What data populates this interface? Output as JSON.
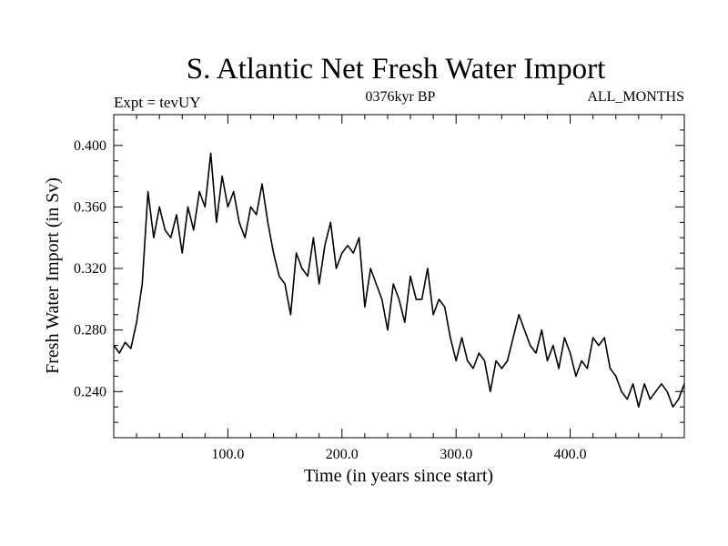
{
  "header": {
    "title": "S. Atlantic Net Fresh Water Import",
    "expt": "Expt = tevUY",
    "subtitle": "0376kyr BP",
    "months": "ALL_MONTHS"
  },
  "chart_data": {
    "type": "line",
    "title": "S. Atlantic Net Fresh Water Import",
    "xlabel": "Time (in years since start)",
    "ylabel": "Fresh Water Import (in Sv)",
    "xlim": [
      0,
      500
    ],
    "ylim": [
      0.21,
      0.42
    ],
    "x_ticks": [
      100,
      200,
      300,
      400
    ],
    "x_tick_labels": [
      "100.0",
      "200.0",
      "300.0",
      "400.0"
    ],
    "y_ticks": [
      0.24,
      0.28,
      0.32,
      0.36,
      0.4
    ],
    "y_tick_labels": [
      "0.240",
      "0.280",
      "0.320",
      "0.360",
      "0.400"
    ],
    "grid": false,
    "series": [
      {
        "color": "#000000",
        "x": [
          0,
          5,
          10,
          15,
          20,
          25,
          30,
          35,
          40,
          45,
          50,
          55,
          60,
          65,
          70,
          75,
          80,
          85,
          90,
          95,
          100,
          105,
          110,
          115,
          120,
          125,
          130,
          135,
          140,
          145,
          150,
          155,
          160,
          165,
          170,
          175,
          180,
          185,
          190,
          195,
          200,
          205,
          210,
          215,
          220,
          225,
          230,
          235,
          240,
          245,
          250,
          255,
          260,
          265,
          270,
          275,
          280,
          285,
          290,
          295,
          300,
          305,
          310,
          315,
          320,
          325,
          330,
          335,
          340,
          345,
          350,
          355,
          360,
          365,
          370,
          375,
          380,
          385,
          390,
          395,
          400,
          405,
          410,
          415,
          420,
          425,
          430,
          435,
          440,
          445,
          450,
          455,
          460,
          465,
          470,
          475,
          480,
          485,
          490,
          495,
          500
        ],
        "y": [
          0.27,
          0.265,
          0.272,
          0.268,
          0.285,
          0.31,
          0.37,
          0.34,
          0.36,
          0.345,
          0.34,
          0.355,
          0.33,
          0.36,
          0.345,
          0.37,
          0.36,
          0.395,
          0.35,
          0.38,
          0.36,
          0.37,
          0.35,
          0.34,
          0.36,
          0.355,
          0.375,
          0.35,
          0.33,
          0.315,
          0.31,
          0.29,
          0.33,
          0.32,
          0.315,
          0.34,
          0.31,
          0.335,
          0.35,
          0.32,
          0.33,
          0.335,
          0.33,
          0.34,
          0.295,
          0.32,
          0.31,
          0.3,
          0.28,
          0.31,
          0.3,
          0.285,
          0.315,
          0.3,
          0.3,
          0.32,
          0.29,
          0.3,
          0.295,
          0.275,
          0.26,
          0.275,
          0.26,
          0.255,
          0.265,
          0.26,
          0.24,
          0.26,
          0.255,
          0.26,
          0.275,
          0.29,
          0.28,
          0.27,
          0.265,
          0.28,
          0.26,
          0.27,
          0.255,
          0.275,
          0.265,
          0.25,
          0.26,
          0.255,
          0.275,
          0.27,
          0.275,
          0.255,
          0.25,
          0.24,
          0.235,
          0.245,
          0.23,
          0.245,
          0.235,
          0.24,
          0.245,
          0.24,
          0.23,
          0.235,
          0.245
        ]
      }
    ]
  }
}
